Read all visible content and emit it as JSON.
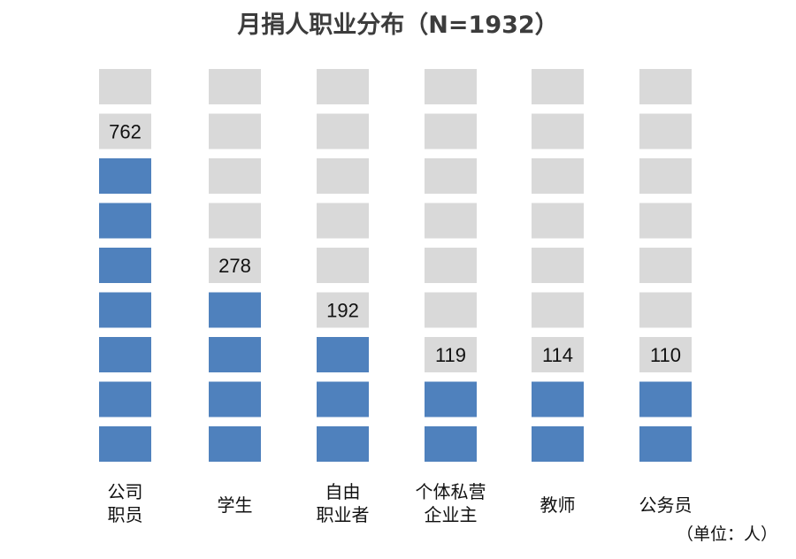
{
  "chart_data": {
    "type": "bar",
    "title": "月捐人职业分布（N=1932）",
    "unit_note": "（单位：人）",
    "categories": [
      {
        "lines": [
          "公司",
          "职员"
        ],
        "value": 762,
        "filled": 7
      },
      {
        "lines": [
          "学生"
        ],
        "value": 278,
        "filled": 4
      },
      {
        "lines": [
          "自由",
          "职业者"
        ],
        "value": 192,
        "filled": 3
      },
      {
        "lines": [
          "个体私营",
          "企业主"
        ],
        "value": 119,
        "filled": 2
      },
      {
        "lines": [
          "教师"
        ],
        "value": 114,
        "filled": 2
      },
      {
        "lines": [
          "公务员"
        ],
        "value": 110,
        "filled": 2
      }
    ],
    "total_blocks": 9,
    "colors": {
      "filled": "#4f81bd",
      "empty": "#d9d9d9",
      "text": "#111111"
    }
  }
}
